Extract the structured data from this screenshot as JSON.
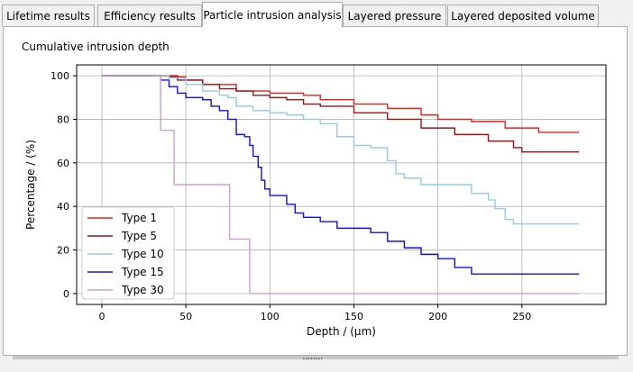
{
  "tabs": [
    {
      "label": "Lifetime results",
      "active": false
    },
    {
      "label": "Efficiency results",
      "active": false
    },
    {
      "label": "Particle intrusion analysis",
      "active": true
    },
    {
      "label": "Layered pressure",
      "active": false
    },
    {
      "label": "Layered deposited volume",
      "active": false
    }
  ],
  "group_title": "Cumulative intrusion depth",
  "splitter_handle": "........",
  "chart_data": {
    "type": "line",
    "xlabel": "Depth / (μm)",
    "ylabel": "Percentage / (%)",
    "xlim": [
      -15,
      300
    ],
    "ylim": [
      -5,
      105
    ],
    "x_ticks": [
      0,
      50,
      100,
      150,
      200,
      250
    ],
    "y_ticks": [
      0,
      20,
      40,
      60,
      80,
      100
    ],
    "grid": true,
    "legend_position": "lower-left",
    "series": [
      {
        "name": "Type 1",
        "color": "#e8201a",
        "step": true,
        "points": [
          [
            0,
            100
          ],
          [
            34,
            100
          ],
          [
            40,
            99.5
          ],
          [
            50,
            98
          ],
          [
            60,
            96
          ],
          [
            80,
            93
          ],
          [
            100,
            92
          ],
          [
            120,
            91
          ],
          [
            130,
            89
          ],
          [
            150,
            87
          ],
          [
            170,
            85
          ],
          [
            190,
            82
          ],
          [
            200,
            80
          ],
          [
            220,
            79
          ],
          [
            240,
            76
          ],
          [
            260,
            74
          ],
          [
            284,
            74
          ]
        ]
      },
      {
        "name": "Type 5",
        "color": "#a01010",
        "step": true,
        "points": [
          [
            0,
            100
          ],
          [
            34,
            100
          ],
          [
            45,
            98
          ],
          [
            60,
            96
          ],
          [
            70,
            94
          ],
          [
            80,
            93
          ],
          [
            90,
            91
          ],
          [
            100,
            90
          ],
          [
            110,
            89
          ],
          [
            120,
            87
          ],
          [
            130,
            86
          ],
          [
            150,
            83
          ],
          [
            170,
            80
          ],
          [
            190,
            76
          ],
          [
            210,
            73
          ],
          [
            230,
            70
          ],
          [
            245,
            67
          ],
          [
            250,
            65
          ],
          [
            284,
            65
          ]
        ]
      },
      {
        "name": "Type 10",
        "color": "#94c8e6",
        "step": true,
        "points": [
          [
            0,
            100
          ],
          [
            28,
            100
          ],
          [
            40,
            99
          ],
          [
            50,
            96
          ],
          [
            60,
            93
          ],
          [
            70,
            91
          ],
          [
            75,
            90
          ],
          [
            80,
            86
          ],
          [
            90,
            84
          ],
          [
            100,
            83
          ],
          [
            110,
            82
          ],
          [
            120,
            80
          ],
          [
            130,
            78
          ],
          [
            140,
            72
          ],
          [
            150,
            68
          ],
          [
            160,
            67
          ],
          [
            170,
            61
          ],
          [
            175,
            55
          ],
          [
            180,
            53
          ],
          [
            190,
            50
          ],
          [
            210,
            50
          ],
          [
            220,
            46
          ],
          [
            230,
            43
          ],
          [
            234,
            39
          ],
          [
            240,
            34
          ],
          [
            245,
            32
          ],
          [
            284,
            32
          ]
        ]
      },
      {
        "name": "Type 15",
        "color": "#1010e0",
        "step": true,
        "points": [
          [
            0,
            100
          ],
          [
            28,
            100
          ],
          [
            35,
            98
          ],
          [
            40,
            95
          ],
          [
            45,
            92
          ],
          [
            50,
            90
          ],
          [
            60,
            89
          ],
          [
            65,
            86
          ],
          [
            70,
            84
          ],
          [
            75,
            80
          ],
          [
            80,
            73
          ],
          [
            85,
            72
          ],
          [
            88,
            68
          ],
          [
            90,
            63
          ],
          [
            93,
            58
          ],
          [
            95,
            52
          ],
          [
            97,
            48
          ],
          [
            100,
            45
          ],
          [
            105,
            45
          ],
          [
            110,
            41
          ],
          [
            115,
            37
          ],
          [
            120,
            35
          ],
          [
            130,
            33
          ],
          [
            140,
            30
          ],
          [
            150,
            30
          ],
          [
            160,
            28
          ],
          [
            170,
            24
          ],
          [
            180,
            21
          ],
          [
            190,
            18
          ],
          [
            200,
            16
          ],
          [
            210,
            12
          ],
          [
            220,
            9
          ],
          [
            284,
            9
          ]
        ]
      },
      {
        "name": "Type 30",
        "color": "#c8a0d0",
        "step": true,
        "points": [
          [
            0,
            100
          ],
          [
            34,
            100
          ],
          [
            35,
            75
          ],
          [
            41,
            75
          ],
          [
            43,
            50
          ],
          [
            75,
            50
          ],
          [
            76,
            25
          ],
          [
            86,
            25
          ],
          [
            88,
            0
          ],
          [
            284,
            0
          ]
        ]
      }
    ]
  }
}
